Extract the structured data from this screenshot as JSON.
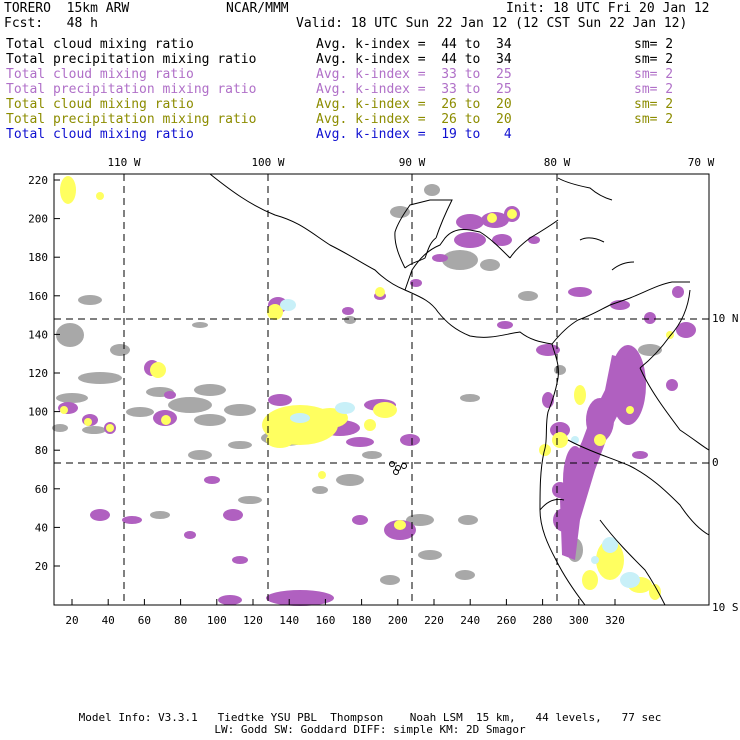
{
  "header": {
    "model": "TORERO  15km ARW",
    "center": "NCAR/MMM",
    "init": "Init: 18 UTC Fri 20 Jan 12",
    "fcst": "Fcst:   48 h",
    "valid": "Valid: 18 UTC Sun 22 Jan 12 (12 CST Sun 22 Jan 12)"
  },
  "legend": [
    {
      "field": "Total cloud mixing ratio",
      "kindex": "Avg. k-index =  44 to  34",
      "sm": "sm= 2",
      "color": "#000000"
    },
    {
      "field": "Total precipitation mixing ratio",
      "kindex": "Avg. k-index =  44 to  34",
      "sm": "sm= 2",
      "color": "#000000"
    },
    {
      "field": "Total cloud mixing ratio",
      "kindex": "Avg. k-index =  33 to  25",
      "sm": "sm= 2",
      "color": "#b070c8"
    },
    {
      "field": "Total precipitation mixing ratio",
      "kindex": "Avg. k-index =  33 to  25",
      "sm": "sm= 2",
      "color": "#b070c8"
    },
    {
      "field": "Total cloud mixing ratio",
      "kindex": "Avg. k-index =  26 to  20",
      "sm": "sm= 2",
      "color": "#8c8c00"
    },
    {
      "field": "Total precipitation mixing ratio",
      "kindex": "Avg. k-index =  26 to  20",
      "sm": "sm= 2",
      "color": "#8c8c00"
    },
    {
      "field": "Total cloud mixing ratio",
      "kindex": "Avg. k-index =  19 to   4",
      "sm": "",
      "color": "#1010d0"
    }
  ],
  "map": {
    "lon_labels": [
      "110 W",
      "100 W",
      "90 W",
      "80 W",
      "70 W"
    ],
    "lat_labels": [
      "10 N",
      "0",
      "10 S"
    ],
    "x_grid_labels": [
      "20",
      "40",
      "60",
      "80",
      "100",
      "120",
      "140",
      "160",
      "180",
      "200",
      "220",
      "240",
      "260",
      "280",
      "300",
      "320"
    ],
    "y_grid_labels": [
      "220",
      "200",
      "180",
      "160",
      "140",
      "120",
      "100",
      "80",
      "60",
      "40",
      "20"
    ],
    "colors": {
      "gray": "#a8a8a8",
      "purple": "#b060c0",
      "yellow": "#ffff60",
      "cyan": "#c8f0f8",
      "coast": "#000000"
    }
  },
  "footer": {
    "line1": "Model Info: V3.3.1   Tiedtke YSU PBL  Thompson    Noah LSM  15 km,   44 levels,   77 sec",
    "line2": "LW: Godd SW: Goddard DIFF: simple KM: 2D Smagor"
  }
}
